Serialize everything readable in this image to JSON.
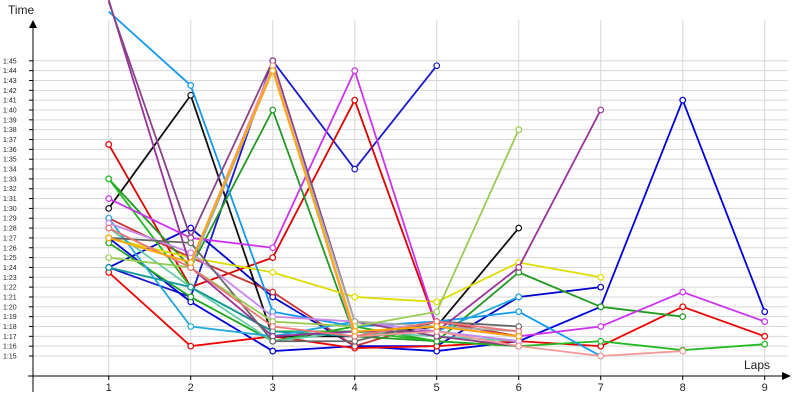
{
  "chart_data": {
    "type": "line",
    "xlabel": "Laps",
    "ylabel": "Time",
    "x": [
      1,
      2,
      3,
      4,
      5,
      6,
      7,
      8,
      9
    ],
    "xlim": [
      0,
      9
    ],
    "ylim": [
      0,
      109
    ],
    "y_tick_values": [
      75,
      76,
      77,
      78,
      79,
      80,
      81,
      82,
      83,
      84,
      85,
      86,
      87,
      88,
      89,
      90,
      91,
      92,
      93,
      94,
      95,
      96,
      97,
      98,
      99,
      100,
      101,
      102,
      103,
      104,
      105
    ],
    "y_tick_labels": [
      "1:15",
      "1:16",
      "1:17",
      "1:18",
      "1:19",
      "1:20",
      "1:21",
      "1:22",
      "1:23",
      "1:24",
      "1:25",
      "1:26",
      "1:27",
      "1:28",
      "1:29",
      "1:30",
      "1:31",
      "1:32",
      "1:33",
      "1:34",
      "1:35",
      "1:36",
      "1:37",
      "1:38",
      "1:39",
      "1:40",
      "1:41",
      "1:42",
      "1:43",
      "1:44",
      "1:45"
    ],
    "grid": true,
    "series": [
      {
        "color": "#1a1acc",
        "values": [
          84,
          81,
          105,
          94,
          104.5,
          null,
          null,
          null,
          null
        ]
      },
      {
        "color": "#0000dd",
        "values": [
          87,
          80.5,
          75.5,
          76,
          75.5,
          76.5,
          80,
          101,
          79.5
        ]
      },
      {
        "color": "#0000cc",
        "values": [
          84,
          88,
          81,
          76,
          76,
          81,
          82,
          null,
          null
        ]
      },
      {
        "color": "#dd0000",
        "values": [
          96.5,
          82,
          85,
          101,
          78,
          77,
          null,
          null,
          null
        ]
      },
      {
        "color": "#ee0000",
        "values": [
          83.5,
          76,
          77,
          75.8,
          76,
          76.5,
          76,
          80,
          77
        ]
      },
      {
        "color": "#cc3333",
        "values": [
          89,
          85,
          81.5,
          76,
          78.5,
          77,
          null,
          null,
          null
        ]
      },
      {
        "color": "#111111",
        "values": [
          90,
          101.5,
          77,
          77,
          78,
          88,
          null,
          null,
          null
        ]
      },
      {
        "color": "#229922",
        "values": [
          93,
          84,
          100,
          77,
          76.5,
          83.5,
          80,
          79,
          null
        ]
      },
      {
        "color": "#22bb22",
        "values": [
          93,
          82,
          77.5,
          77.5,
          76.5,
          76,
          76.5,
          75.6,
          76.2
        ]
      },
      {
        "color": "#22aa22",
        "values": [
          86.5,
          81,
          76.5,
          78,
          76.5,
          76,
          null,
          null,
          null
        ]
      },
      {
        "color": "#dddd00",
        "values": [
          87,
          85,
          83.5,
          81,
          80.5,
          84.5,
          83,
          null,
          null
        ]
      },
      {
        "color": "#66ccaa",
        "values": [
          88,
          82,
          76.5,
          77.5,
          77,
          76.5,
          null,
          null,
          null
        ]
      },
      {
        "color": "#119999",
        "values": [
          84,
          82,
          77.5,
          77,
          77.5,
          76.5,
          null,
          null,
          null
        ]
      },
      {
        "color": "#1199ee",
        "values": [
          110,
          102.5,
          79.5,
          78,
          78.5,
          79.5,
          75,
          null,
          null
        ]
      },
      {
        "color": "#22aadd",
        "values": [
          89,
          78,
          77,
          78.5,
          77.5,
          81,
          null,
          null,
          null
        ]
      },
      {
        "color": "#cc33ee",
        "values": [
          91,
          87,
          86,
          104,
          78,
          77,
          78,
          81.5,
          78.5
        ]
      },
      {
        "color": "#cc88ee",
        "values": [
          88.5,
          85.5,
          79,
          78.5,
          77.5,
          76.5,
          null,
          null,
          null
        ]
      },
      {
        "color": "#993399",
        "values": [
          118,
          84,
          77,
          77.5,
          77.5,
          84,
          100,
          null,
          null
        ]
      },
      {
        "color": "#884488",
        "values": [
          111,
          87,
          105,
          78.5,
          77,
          76,
          null,
          null,
          null
        ]
      },
      {
        "color": "#aaaaaa",
        "values": [
          88,
          84,
          104,
          78.5,
          78,
          77.5,
          null,
          null,
          null
        ]
      },
      {
        "color": "#666666",
        "values": [
          87,
          86.5,
          76.5,
          76.5,
          78.5,
          78,
          null,
          null,
          null
        ]
      },
      {
        "color": "#99cc55",
        "values": [
          85,
          84,
          78.5,
          78,
          79.5,
          98,
          null,
          null,
          null
        ]
      },
      {
        "color": "#f39999",
        "values": [
          87,
          84.5,
          104.5,
          77,
          77.5,
          76,
          75,
          75.5,
          null
        ]
      },
      {
        "color": "#ee7777",
        "values": [
          88,
          84,
          78,
          77,
          78.5,
          77.5,
          null,
          null,
          null
        ]
      },
      {
        "color": "#ffaa00",
        "values": [
          87,
          84.5,
          104,
          77.5,
          78,
          77,
          null,
          null,
          null
        ]
      }
    ]
  }
}
